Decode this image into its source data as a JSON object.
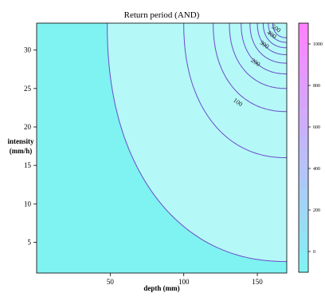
{
  "chart_data": {
    "type": "contour",
    "title": "Return period (AND)",
    "xlabel": "depth (mm)",
    "ylabel_line1": "intensity",
    "ylabel_line2": "(mm/h)",
    "xlim": [
      0,
      170
    ],
    "ylim": [
      1,
      33.5
    ],
    "x_ticks": [
      50,
      100,
      150
    ],
    "y_ticks": [
      5,
      10,
      15,
      20,
      25,
      30
    ],
    "contour_levels": [
      100,
      200,
      300,
      400,
      500,
      600,
      700,
      800,
      900,
      1000
    ],
    "contour_labels": [
      {
        "text": "100",
        "x": 136,
        "y": 23
      },
      {
        "text": "200",
        "x": 148,
        "y": 28.2
      },
      {
        "text": "300",
        "x": 154,
        "y": 30.5
      },
      {
        "text": "400",
        "x": 159,
        "y": 31.8
      },
      {
        "text": "500",
        "x": 162,
        "y": 32.6
      }
    ],
    "colorbar": {
      "range": [
        -100,
        1100
      ],
      "ticks": [
        0,
        200,
        400,
        600,
        800,
        1000
      ],
      "color_low": "#80F3F3",
      "color_high": "#FF80FF"
    },
    "line_color": "#6A4DC8",
    "fill_color": "#7FF2F2"
  }
}
